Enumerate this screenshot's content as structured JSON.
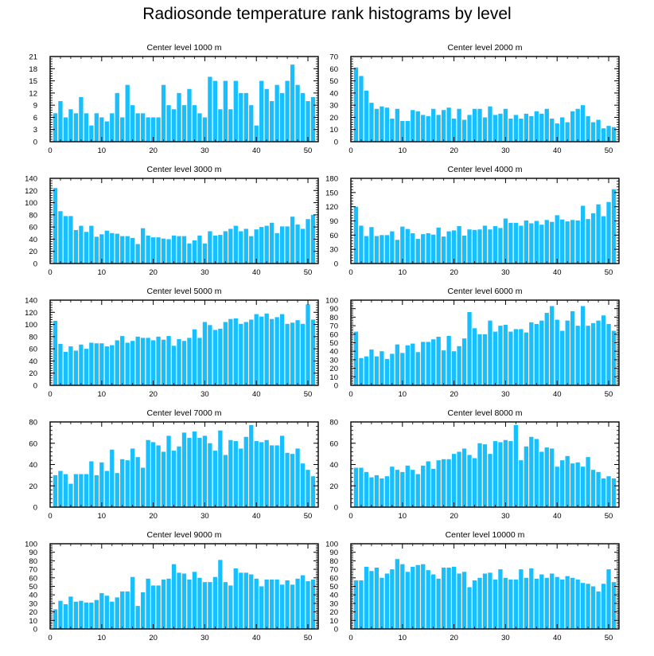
{
  "title": "Radiosonde temperature rank histograms by level",
  "colors": {
    "bar": "#17bfff",
    "axis": "#000000",
    "background": "#ffffff"
  },
  "chart_data": [
    {
      "type": "bar",
      "title": "Center level 1000 m",
      "xlim": [
        0,
        52
      ],
      "ylim": [
        0,
        21
      ],
      "xticks": [
        0,
        10,
        20,
        30,
        40,
        50
      ],
      "yticks": [
        0,
        3,
        6,
        9,
        12,
        15,
        18,
        21
      ],
      "x": [
        1,
        2,
        3,
        4,
        5,
        6,
        7,
        8,
        9,
        10,
        11,
        12,
        13,
        14,
        15,
        16,
        17,
        18,
        19,
        20,
        21,
        22,
        23,
        24,
        25,
        26,
        27,
        28,
        29,
        30,
        31,
        32,
        33,
        34,
        35,
        36,
        37,
        38,
        39,
        40,
        41,
        42,
        43,
        44,
        45,
        46,
        47,
        48,
        49,
        50,
        51
      ],
      "values": [
        7,
        10,
        6,
        8,
        7,
        11,
        7,
        4,
        7,
        6,
        5,
        7,
        12,
        6,
        14,
        9,
        7,
        7,
        6,
        6,
        6,
        14,
        9,
        8,
        12,
        9,
        13,
        9,
        7,
        6,
        16,
        15,
        8,
        15,
        8,
        15,
        12,
        12,
        9,
        4,
        15,
        13,
        10,
        14,
        12,
        15,
        19,
        14,
        12,
        10,
        11
      ]
    },
    {
      "type": "bar",
      "title": "Center level 2000 m",
      "xlim": [
        0,
        52
      ],
      "ylim": [
        0,
        70
      ],
      "xticks": [
        0,
        10,
        20,
        30,
        40,
        50
      ],
      "yticks": [
        0,
        10,
        20,
        30,
        40,
        50,
        60,
        70
      ],
      "x": [
        1,
        2,
        3,
        4,
        5,
        6,
        7,
        8,
        9,
        10,
        11,
        12,
        13,
        14,
        15,
        16,
        17,
        18,
        19,
        20,
        21,
        22,
        23,
        24,
        25,
        26,
        27,
        28,
        29,
        30,
        31,
        32,
        33,
        34,
        35,
        36,
        37,
        38,
        39,
        40,
        41,
        42,
        43,
        44,
        45,
        46,
        47,
        48,
        49,
        50,
        51
      ],
      "values": [
        61,
        54,
        42,
        32,
        27,
        29,
        28,
        19,
        27,
        17,
        17,
        26,
        25,
        22,
        21,
        27,
        22,
        26,
        28,
        19,
        27,
        18,
        22,
        27,
        27,
        20,
        29,
        22,
        23,
        27,
        19,
        22,
        19,
        23,
        21,
        25,
        23,
        27,
        19,
        15,
        20,
        16,
        25,
        27,
        30,
        21,
        16,
        18,
        11,
        13,
        12
      ]
    },
    {
      "type": "bar",
      "title": "Center level 3000 m",
      "xlim": [
        0,
        52
      ],
      "ylim": [
        0,
        140
      ],
      "xticks": [
        0,
        10,
        20,
        30,
        40,
        50
      ],
      "yticks": [
        0,
        20,
        40,
        60,
        80,
        100,
        120,
        140
      ],
      "x": [
        1,
        2,
        3,
        4,
        5,
        6,
        7,
        8,
        9,
        10,
        11,
        12,
        13,
        14,
        15,
        16,
        17,
        18,
        19,
        20,
        21,
        22,
        23,
        24,
        25,
        26,
        27,
        28,
        29,
        30,
        31,
        32,
        33,
        34,
        35,
        36,
        37,
        38,
        39,
        40,
        41,
        42,
        43,
        44,
        45,
        46,
        47,
        48,
        49,
        50,
        51
      ],
      "values": [
        124,
        86,
        78,
        78,
        55,
        62,
        52,
        62,
        44,
        48,
        54,
        50,
        49,
        45,
        45,
        42,
        32,
        58,
        46,
        43,
        43,
        41,
        40,
        46,
        45,
        45,
        33,
        38,
        46,
        33,
        53,
        46,
        47,
        53,
        57,
        62,
        53,
        57,
        45,
        56,
        60,
        62,
        67,
        50,
        61,
        61,
        77,
        64,
        57,
        73,
        80
      ]
    },
    {
      "type": "bar",
      "title": "Center level 4000 m",
      "xlim": [
        0,
        52
      ],
      "ylim": [
        0,
        180
      ],
      "xticks": [
        0,
        10,
        20,
        30,
        40,
        50
      ],
      "yticks": [
        0,
        30,
        60,
        90,
        120,
        150,
        180
      ],
      "x": [
        1,
        2,
        3,
        4,
        5,
        6,
        7,
        8,
        9,
        10,
        11,
        12,
        13,
        14,
        15,
        16,
        17,
        18,
        19,
        20,
        21,
        22,
        23,
        24,
        25,
        26,
        27,
        28,
        29,
        30,
        31,
        32,
        33,
        34,
        35,
        36,
        37,
        38,
        39,
        40,
        41,
        42,
        43,
        44,
        45,
        46,
        47,
        48,
        49,
        50,
        51
      ],
      "values": [
        120,
        80,
        58,
        77,
        58,
        60,
        60,
        68,
        50,
        78,
        73,
        64,
        52,
        62,
        64,
        61,
        76,
        57,
        68,
        70,
        79,
        59,
        72,
        71,
        72,
        80,
        72,
        79,
        75,
        95,
        86,
        86,
        80,
        91,
        85,
        90,
        82,
        92,
        88,
        102,
        93,
        89,
        92,
        91,
        122,
        94,
        106,
        125,
        100,
        130,
        157
      ]
    },
    {
      "type": "bar",
      "title": "Center level 5000 m",
      "xlim": [
        0,
        52
      ],
      "ylim": [
        0,
        140
      ],
      "xticks": [
        0,
        10,
        20,
        30,
        40,
        50
      ],
      "yticks": [
        0,
        20,
        40,
        60,
        80,
        100,
        120,
        140
      ],
      "x": [
        1,
        2,
        3,
        4,
        5,
        6,
        7,
        8,
        9,
        10,
        11,
        12,
        13,
        14,
        15,
        16,
        17,
        18,
        19,
        20,
        21,
        22,
        23,
        24,
        25,
        26,
        27,
        28,
        29,
        30,
        31,
        32,
        33,
        34,
        35,
        36,
        37,
        38,
        39,
        40,
        41,
        42,
        43,
        44,
        45,
        46,
        47,
        48,
        49,
        50,
        51
      ],
      "values": [
        106,
        68,
        55,
        64,
        57,
        67,
        60,
        70,
        69,
        69,
        64,
        66,
        74,
        81,
        70,
        73,
        80,
        78,
        78,
        74,
        80,
        75,
        81,
        65,
        76,
        73,
        78,
        92,
        78,
        104,
        99,
        91,
        93,
        104,
        109,
        110,
        101,
        104,
        108,
        117,
        113,
        118,
        109,
        112,
        117,
        101,
        103,
        107,
        101,
        133,
        108
      ]
    },
    {
      "type": "bar",
      "title": "Center level 6000 m",
      "xlim": [
        0,
        52
      ],
      "ylim": [
        0,
        100
      ],
      "xticks": [
        0,
        10,
        20,
        30,
        40,
        50
      ],
      "yticks": [
        0,
        10,
        20,
        30,
        40,
        50,
        60,
        70,
        80,
        90,
        100
      ],
      "x": [
        1,
        2,
        3,
        4,
        5,
        6,
        7,
        8,
        9,
        10,
        11,
        12,
        13,
        14,
        15,
        16,
        17,
        18,
        19,
        20,
        21,
        22,
        23,
        24,
        25,
        26,
        27,
        28,
        29,
        30,
        31,
        32,
        33,
        34,
        35,
        36,
        37,
        38,
        39,
        40,
        41,
        42,
        43,
        44,
        45,
        46,
        47,
        48,
        49,
        50,
        51
      ],
      "values": [
        63,
        32,
        34,
        42,
        34,
        40,
        31,
        37,
        48,
        38,
        47,
        49,
        39,
        51,
        51,
        54,
        57,
        41,
        58,
        40,
        46,
        55,
        86,
        67,
        60,
        60,
        76,
        63,
        70,
        71,
        63,
        66,
        66,
        62,
        74,
        72,
        76,
        85,
        93,
        77,
        64,
        76,
        87,
        70,
        93,
        70,
        73,
        76,
        82,
        72,
        64
      ]
    },
    {
      "type": "bar",
      "title": "Center level 7000 m",
      "xlim": [
        0,
        52
      ],
      "ylim": [
        0,
        80
      ],
      "xticks": [
        0,
        10,
        20,
        30,
        40,
        50
      ],
      "yticks": [
        0,
        20,
        40,
        60,
        80
      ],
      "x": [
        1,
        2,
        3,
        4,
        5,
        6,
        7,
        8,
        9,
        10,
        11,
        12,
        13,
        14,
        15,
        16,
        17,
        18,
        19,
        20,
        21,
        22,
        23,
        24,
        25,
        26,
        27,
        28,
        29,
        30,
        31,
        32,
        33,
        34,
        35,
        36,
        37,
        38,
        39,
        40,
        41,
        42,
        43,
        44,
        45,
        46,
        47,
        48,
        49,
        50,
        51
      ],
      "values": [
        30,
        34,
        31,
        22,
        31,
        31,
        31,
        43,
        30,
        42,
        34,
        54,
        32,
        45,
        44,
        55,
        47,
        37,
        63,
        61,
        58,
        52,
        67,
        53,
        57,
        70,
        65,
        71,
        65,
        67,
        60,
        53,
        72,
        49,
        63,
        62,
        55,
        66,
        77,
        62,
        61,
        63,
        58,
        58,
        67,
        51,
        50,
        55,
        41,
        35,
        29
      ]
    },
    {
      "type": "bar",
      "title": "Center level 8000 m",
      "xlim": [
        0,
        52
      ],
      "ylim": [
        0,
        80
      ],
      "xticks": [
        0,
        10,
        20,
        30,
        40,
        50
      ],
      "yticks": [
        0,
        20,
        40,
        60,
        80
      ],
      "x": [
        1,
        2,
        3,
        4,
        5,
        6,
        7,
        8,
        9,
        10,
        11,
        12,
        13,
        14,
        15,
        16,
        17,
        18,
        19,
        20,
        21,
        22,
        23,
        24,
        25,
        26,
        27,
        28,
        29,
        30,
        31,
        32,
        33,
        34,
        35,
        36,
        37,
        38,
        39,
        40,
        41,
        42,
        43,
        44,
        45,
        46,
        47,
        48,
        49,
        50,
        51
      ],
      "values": [
        37,
        37,
        33,
        28,
        30,
        27,
        29,
        38,
        35,
        33,
        39,
        35,
        31,
        39,
        43,
        36,
        44,
        45,
        45,
        50,
        52,
        55,
        49,
        46,
        60,
        59,
        50,
        62,
        61,
        63,
        62,
        77,
        44,
        57,
        66,
        64,
        52,
        56,
        55,
        38,
        44,
        48,
        41,
        42,
        38,
        47,
        35,
        33,
        27,
        29,
        27
      ]
    },
    {
      "type": "bar",
      "title": "Center level 9000 m",
      "xlim": [
        0,
        52
      ],
      "ylim": [
        0,
        100
      ],
      "xticks": [
        0,
        10,
        20,
        30,
        40,
        50
      ],
      "yticks": [
        0,
        10,
        20,
        30,
        40,
        50,
        60,
        70,
        80,
        90,
        100
      ],
      "x": [
        1,
        2,
        3,
        4,
        5,
        6,
        7,
        8,
        9,
        10,
        11,
        12,
        13,
        14,
        15,
        16,
        17,
        18,
        19,
        20,
        21,
        22,
        23,
        24,
        25,
        26,
        27,
        28,
        29,
        30,
        31,
        32,
        33,
        34,
        35,
        36,
        37,
        38,
        39,
        40,
        41,
        42,
        43,
        44,
        45,
        46,
        47,
        48,
        49,
        50,
        51
      ],
      "values": [
        23,
        33,
        29,
        38,
        32,
        33,
        31,
        31,
        34,
        42,
        39,
        32,
        37,
        44,
        44,
        61,
        27,
        43,
        59,
        51,
        51,
        58,
        59,
        76,
        66,
        65,
        58,
        67,
        60,
        55,
        55,
        61,
        81,
        55,
        51,
        71,
        66,
        66,
        64,
        59,
        50,
        58,
        58,
        58,
        52,
        57,
        52,
        59,
        63,
        56,
        58
      ]
    },
    {
      "type": "bar",
      "title": "Center level 10000 m",
      "xlim": [
        0,
        52
      ],
      "ylim": [
        0,
        100
      ],
      "xticks": [
        0,
        10,
        20,
        30,
        40,
        50
      ],
      "yticks": [
        0,
        10,
        20,
        30,
        40,
        50,
        60,
        70,
        80,
        90,
        100
      ],
      "x": [
        1,
        2,
        3,
        4,
        5,
        6,
        7,
        8,
        9,
        10,
        11,
        12,
        13,
        14,
        15,
        16,
        17,
        18,
        19,
        20,
        21,
        22,
        23,
        24,
        25,
        26,
        27,
        28,
        29,
        30,
        31,
        32,
        33,
        34,
        35,
        36,
        37,
        38,
        39,
        40,
        41,
        42,
        43,
        44,
        45,
        46,
        47,
        48,
        49,
        50,
        51
      ],
      "values": [
        57,
        57,
        73,
        68,
        72,
        60,
        65,
        70,
        82,
        76,
        67,
        73,
        75,
        76,
        69,
        64,
        59,
        72,
        72,
        73,
        65,
        67,
        49,
        57,
        60,
        65,
        66,
        58,
        70,
        60,
        58,
        58,
        70,
        60,
        71,
        59,
        64,
        60,
        65,
        61,
        58,
        62,
        60,
        58,
        54,
        53,
        50,
        44,
        53,
        70,
        55
      ]
    }
  ]
}
